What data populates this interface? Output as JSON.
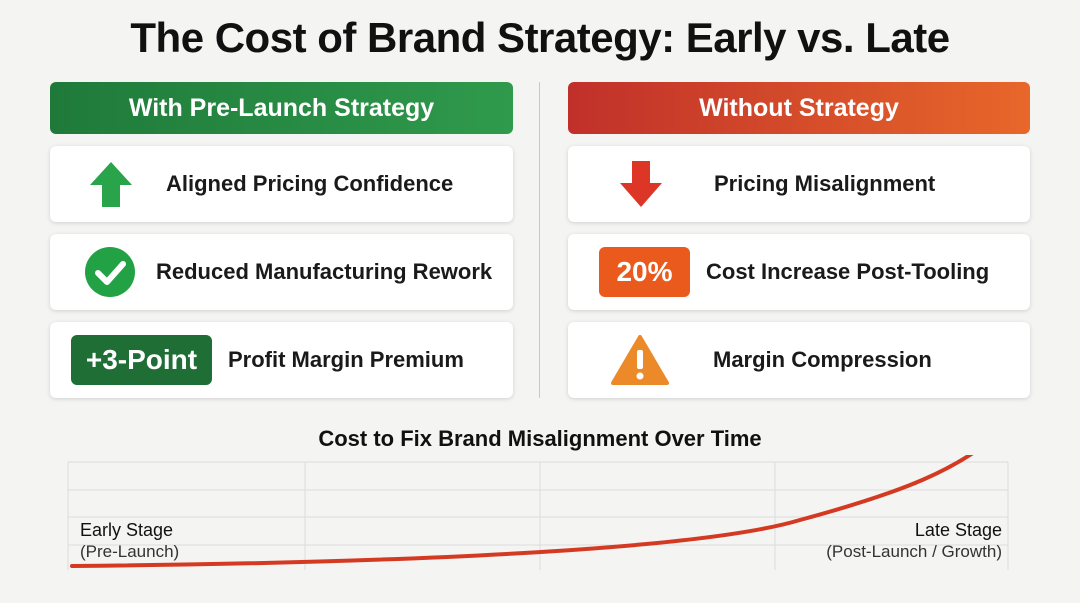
{
  "title": "The Cost of Brand Strategy: Early vs. Late",
  "columns": [
    {
      "header": "With Pre-Launch Strategy",
      "items": [
        {
          "text": "Aligned Pricing Confidence"
        },
        {
          "text": "Reduced Manufacturing Rework"
        },
        {
          "badge": "+3-Point",
          "text": "Profit Margin Premium"
        }
      ]
    },
    {
      "header": "Without Strategy",
      "items": [
        {
          "text": "Pricing Misalignment"
        },
        {
          "badge": "20%",
          "text": "Cost Increase Post-Tooling"
        },
        {
          "text": "Margin Compression"
        }
      ]
    }
  ],
  "curve": {
    "title": "Cost to Fix Brand Misalignment Over Time",
    "start": {
      "label": "Early Stage",
      "sub": "(Pre-Launch)"
    },
    "end": {
      "label": "Late Stage",
      "sub": "(Post-Launch / Growth)"
    }
  }
}
